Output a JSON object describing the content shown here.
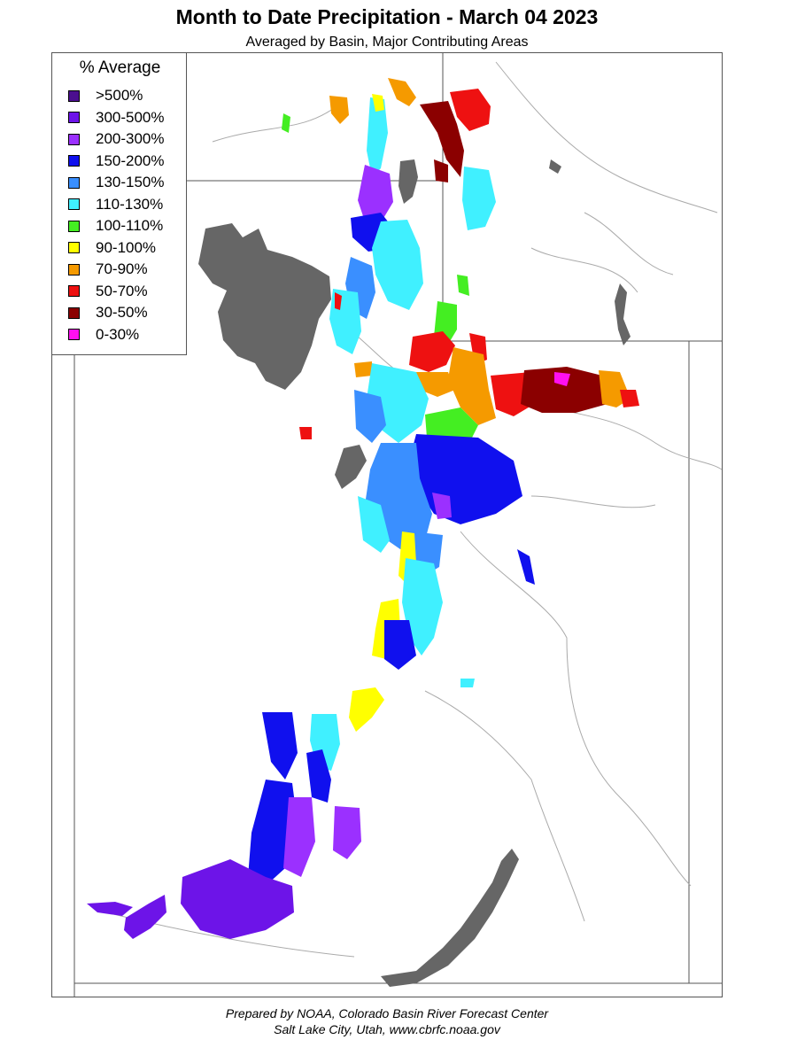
{
  "title": "Month to Date Precipitation - March 04 2023",
  "subtitle": "Averaged by Basin, Major Contributing Areas",
  "legend": {
    "title": "% Average",
    "items": [
      {
        "label": ">500%",
        "color": "#4b0f8f"
      },
      {
        "label": "300-500%",
        "color": "#6d14e8"
      },
      {
        "label": "200-300%",
        "color": "#9b30ff"
      },
      {
        "label": "150-200%",
        "color": "#1010ee"
      },
      {
        "label": "130-150%",
        "color": "#3a8fff"
      },
      {
        "label": "110-130%",
        "color": "#40f0ff"
      },
      {
        "label": "100-110%",
        "color": "#44ee22"
      },
      {
        "label": "90-100%",
        "color": "#ffff00"
      },
      {
        "label": "70-90%",
        "color": "#f59a00"
      },
      {
        "label": "50-70%",
        "color": "#ee1111"
      },
      {
        "label": "30-50%",
        "color": "#8b0000"
      },
      {
        "label": "0-30%",
        "color": "#ff10f0"
      }
    ]
  },
  "footer": {
    "line1": "Prepared by NOAA, Colorado Basin River Forecast Center",
    "line2": "Salt Lake City, Utah, www.cbrfc.noaa.gov"
  },
  "colors": {
    "lake": "#666666",
    "border": "#555555",
    "river": "#aaaaaa"
  }
}
